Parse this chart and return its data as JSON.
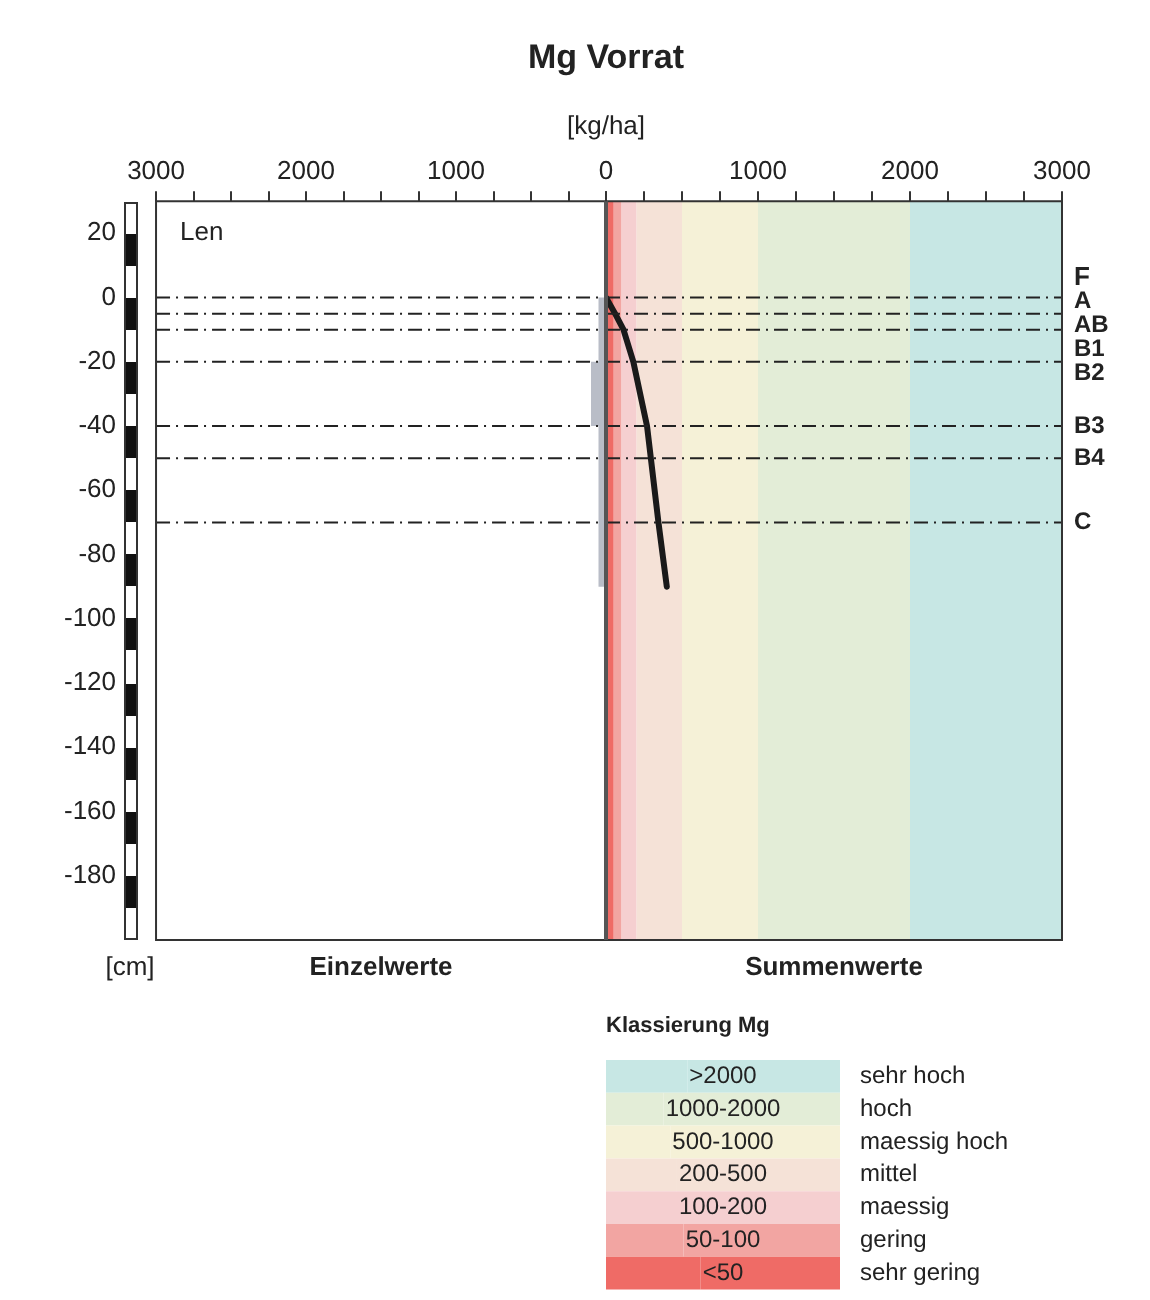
{
  "chart_data": [
    {
      "type": "area",
      "title": "Mg Vorrat",
      "xlabel": "[kg/ha]",
      "ylabel": "[cm]",
      "grid": false,
      "marker": "none",
      "xlim": [
        3000,
        0
      ],
      "xticks": [
        3000,
        {
          "value": 2750,
          "label": null
        },
        {
          "value": 2500,
          "label": null
        },
        {
          "value": 2250,
          "label": null
        },
        2000,
        {
          "value": 1750,
          "label": null
        },
        {
          "value": 1500,
          "label": null
        },
        {
          "value": 1250,
          "label": null
        },
        1000,
        {
          "value": 750,
          "label": null
        },
        {
          "value": 500,
          "label": null
        },
        {
          "value": 250,
          "label": null
        },
        {
          "value": 0,
          "label": null
        }
      ],
      "ylim": [
        -200,
        30
      ],
      "yticks": [
        20,
        0,
        -20,
        -40,
        -60,
        -80,
        -100,
        -120,
        -140,
        -160,
        -180
      ],
      "series": [
        {
          "color": "#b9bdc7",
          "x": [
            0,
            50,
            50,
            100,
            100,
            50,
            50,
            0
          ],
          "values": [
            0,
            0,
            -20,
            -20,
            -40,
            -40,
            -90,
            -90
          ]
        }
      ],
      "ref_lines": [
        {
          "axis": "y",
          "value": 0,
          "line_style": "dashed"
        },
        {
          "axis": "y",
          "value": -5,
          "line_style": "dashed"
        },
        {
          "axis": "y",
          "value": -10,
          "line_style": "dashed"
        },
        {
          "axis": "y",
          "value": -20,
          "line_style": "dashed"
        },
        {
          "axis": "y",
          "value": -40,
          "line_style": "dashed"
        },
        {
          "axis": "y",
          "value": -50,
          "line_style": "dashed"
        },
        {
          "axis": "y",
          "value": -70,
          "line_style": "dashed"
        }
      ],
      "annotations": [
        "Len",
        "Einzelwerte"
      ]
    },
    {
      "type": "line",
      "legend_title": "Klassierung Mg",
      "legend": "bottom",
      "grid": false,
      "marker": "none",
      "line_style": "solid",
      "tick_labels": "x",
      "xlim": [
        0,
        3000
      ],
      "xticks": [
        0,
        {
          "value": 250,
          "label": null
        },
        {
          "value": 500,
          "label": null
        },
        {
          "value": 750,
          "label": null
        },
        1000,
        {
          "value": 1250,
          "label": null
        },
        {
          "value": 1500,
          "label": null
        },
        {
          "value": 1750,
          "label": null
        },
        2000,
        {
          "value": 2250,
          "label": null
        },
        {
          "value": 2500,
          "label": null
        },
        {
          "value": 2750,
          "label": null
        },
        3000
      ],
      "ylim": [
        -200,
        30
      ],
      "series": [
        {
          "color": "#1a1a1a",
          "x": [
            0,
            60,
            115,
            180,
            270,
            295,
            345,
            400
          ],
          "values": [
            0,
            -5,
            -10,
            -20,
            -40,
            -50,
            -70,
            -90
          ]
        }
      ],
      "ref_lines": [
        {
          "axis": "y",
          "value": 0,
          "label": "A",
          "line_style": "dashed"
        },
        {
          "axis": "y",
          "value": -5,
          "label": "AB",
          "line_style": "dashed"
        },
        {
          "axis": "y",
          "value": -10,
          "label": "B1",
          "line_style": "dashed"
        },
        {
          "axis": "y",
          "value": -20,
          "label": "B2",
          "line_style": "dashed"
        },
        {
          "axis": "y",
          "value": -40,
          "label": "B3",
          "line_style": "dashed"
        },
        {
          "axis": "y",
          "value": -50,
          "label": "B4",
          "line_style": "dashed"
        },
        {
          "axis": "y",
          "value": -70,
          "label": "C",
          "line_style": "dashed"
        }
      ],
      "bands": [
        {
          "axis": "x",
          "from": 2000,
          "to": 3000,
          "label": ">2000",
          "color": "#c7e7e4"
        },
        {
          "axis": "x",
          "from": 1000,
          "to": 2000,
          "label": "1000-2000",
          "color": "#e3edd7"
        },
        {
          "axis": "x",
          "from": 500,
          "to": 1000,
          "label": "500-1000",
          "color": "#f5f1d7"
        },
        {
          "axis": "x",
          "from": 200,
          "to": 500,
          "label": "200-500",
          "color": "#f5e2d7"
        },
        {
          "axis": "x",
          "from": 100,
          "to": 200,
          "label": "100-200",
          "color": "#f5cfd0"
        },
        {
          "axis": "x",
          "from": 50,
          "to": 100,
          "label": "50-100",
          "color": "#f2a5a2"
        },
        {
          "axis": "x",
          "from": 0,
          "to": 50,
          "label": "<50",
          "color": "#ef6b66"
        }
      ],
      "annotations": [
        "Summenwerte",
        "sehr hoch",
        "hoch",
        "maessig hoch",
        "mittel",
        "maessig",
        "gering",
        "sehr gering",
        {
          "text": "F",
          "x": 3000,
          "y": 0
        }
      ]
    }
  ]
}
